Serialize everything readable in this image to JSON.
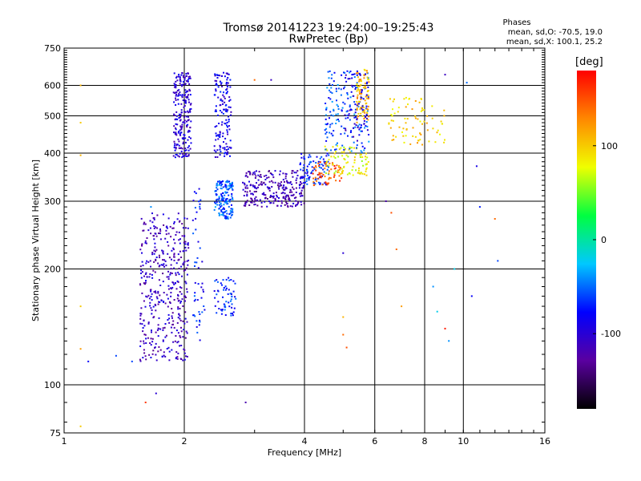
{
  "title_line1": "Tromsø 20141223 19:24:00–19:25:43",
  "title_line2": "RwPretec (Bp)",
  "stats": {
    "title": "Phases",
    "line1": "mean, sd,O: -70.5, 19.0",
    "line2": "mean, sd,X: 100.1, 25.2"
  },
  "chart_data": {
    "type": "scatter",
    "xlabel": "Frequency [MHz]",
    "ylabel": "Stationary phase Virtual Height [km]",
    "x_scale": "log",
    "y_scale": "log",
    "xlim": [
      1,
      16
    ],
    "ylim": [
      75,
      750
    ],
    "x_ticks": [
      1,
      2,
      4,
      6,
      8,
      10,
      16
    ],
    "y_ticks": [
      75,
      100,
      200,
      300,
      400,
      500,
      600,
      750
    ],
    "x_grid": [
      2,
      4,
      6,
      8,
      10
    ],
    "y_grid": [
      100,
      200,
      300,
      400,
      500,
      600
    ],
    "grid": true,
    "colorbar": {
      "label": "[deg]",
      "min": -180,
      "max": 180,
      "ticks": [
        100,
        0,
        -100
      ],
      "colors": [
        "#000000",
        "#5a00a0",
        "#0000ff",
        "#00c8ff",
        "#00ff40",
        "#f0ff00",
        "#ff8800",
        "#ff0000"
      ]
    },
    "series": [
      {
        "x_range": [
          1.55,
          2.05
        ],
        "y_range": [
          115,
          280
        ],
        "phase": -110,
        "count": 420
      },
      {
        "x_range": [
          1.88,
          2.08
        ],
        "y_range": [
          390,
          650
        ],
        "phase": -100,
        "count": 230
      },
      {
        "x_range": [
          2.38,
          2.62
        ],
        "y_range": [
          390,
          650
        ],
        "phase": -90,
        "count": 150
      },
      {
        "x_range": [
          2.38,
          2.65
        ],
        "y_range": [
          270,
          340
        ],
        "phase": -55,
        "count": 160
      },
      {
        "x_range": [
          2.38,
          2.7
        ],
        "y_range": [
          150,
          190
        ],
        "phase": -70,
        "count": 60
      },
      {
        "x_range": [
          2.1,
          2.25
        ],
        "y_range": [
          130,
          330
        ],
        "phase": -75,
        "count": 50
      },
      {
        "x_range": [
          2.8,
          4.0
        ],
        "y_range": [
          290,
          360
        ],
        "phase": -115,
        "count": 260
      },
      {
        "x_range": [
          3.9,
          4.6
        ],
        "y_range": [
          330,
          400
        ],
        "phase": -70,
        "count": 90
      },
      {
        "x_range": [
          4.2,
          5.0
        ],
        "y_range": [
          330,
          380
        ],
        "phase": 150,
        "count": 60
      },
      {
        "x_range": [
          4.5,
          5.8
        ],
        "y_range": [
          350,
          420
        ],
        "phase": 80,
        "count": 90
      },
      {
        "x_range": [
          4.5,
          5.8
        ],
        "y_range": [
          400,
          660
        ],
        "phase": -60,
        "count": 160
      },
      {
        "x_range": [
          5.4,
          5.8
        ],
        "y_range": [
          480,
          660
        ],
        "phase": 110,
        "count": 90
      },
      {
        "x_range": [
          6.5,
          9.0
        ],
        "y_range": [
          420,
          560
        ],
        "phase": 100,
        "count": 80
      },
      {
        "x_range": [
          5.0,
          5.8
        ],
        "y_range": [
          420,
          660
        ],
        "phase": -100,
        "count": 60
      }
    ],
    "outliers": [
      {
        "x": 1.1,
        "y": 480,
        "phase": 100
      },
      {
        "x": 1.1,
        "y": 395,
        "phase": 110
      },
      {
        "x": 1.1,
        "y": 160,
        "phase": 100
      },
      {
        "x": 1.1,
        "y": 124,
        "phase": 120
      },
      {
        "x": 1.1,
        "y": 78,
        "phase": 100
      },
      {
        "x": 1.1,
        "y": 600,
        "phase": 110
      },
      {
        "x": 1.15,
        "y": 115,
        "phase": -80
      },
      {
        "x": 1.35,
        "y": 119,
        "phase": -60
      },
      {
        "x": 1.48,
        "y": 115,
        "phase": -60
      },
      {
        "x": 1.6,
        "y": 90,
        "phase": 160
      },
      {
        "x": 1.7,
        "y": 95,
        "phase": -100
      },
      {
        "x": 1.65,
        "y": 290,
        "phase": -40
      },
      {
        "x": 2.85,
        "y": 90,
        "phase": -120
      },
      {
        "x": 3.0,
        "y": 620,
        "phase": 140
      },
      {
        "x": 3.3,
        "y": 620,
        "phase": -110
      },
      {
        "x": 5.0,
        "y": 220,
        "phase": -100
      },
      {
        "x": 5.0,
        "y": 150,
        "phase": 110
      },
      {
        "x": 5.0,
        "y": 135,
        "phase": 140
      },
      {
        "x": 5.1,
        "y": 125,
        "phase": 150
      },
      {
        "x": 6.4,
        "y": 300,
        "phase": -120
      },
      {
        "x": 6.6,
        "y": 280,
        "phase": 150
      },
      {
        "x": 6.8,
        "y": 225,
        "phase": 140
      },
      {
        "x": 7.0,
        "y": 160,
        "phase": 120
      },
      {
        "x": 8.4,
        "y": 180,
        "phase": -40
      },
      {
        "x": 8.6,
        "y": 155,
        "phase": -20
      },
      {
        "x": 9.0,
        "y": 140,
        "phase": 170
      },
      {
        "x": 9.2,
        "y": 130,
        "phase": -40
      },
      {
        "x": 9.5,
        "y": 200,
        "phase": -20
      },
      {
        "x": 10.5,
        "y": 170,
        "phase": -80
      },
      {
        "x": 10.8,
        "y": 370,
        "phase": -90
      },
      {
        "x": 11.0,
        "y": 290,
        "phase": -70
      },
      {
        "x": 12.0,
        "y": 270,
        "phase": 140
      },
      {
        "x": 12.2,
        "y": 210,
        "phase": -60
      },
      {
        "x": 10.2,
        "y": 610,
        "phase": -50
      },
      {
        "x": 9.0,
        "y": 640,
        "phase": -110
      }
    ]
  }
}
